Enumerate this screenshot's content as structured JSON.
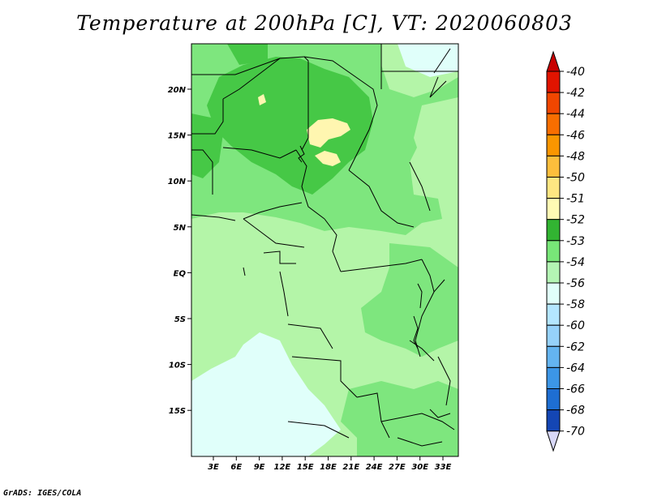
{
  "title": "Temperature at 200hPa [C], VT: 2020060803",
  "credit": "GrADS: IGES/COLA",
  "map": {
    "lon_ticks": [
      "3E",
      "6E",
      "9E",
      "12E",
      "15E",
      "18E",
      "21E",
      "24E",
      "27E",
      "30E",
      "33E"
    ],
    "lat_ticks": [
      "20N",
      "15N",
      "10N",
      "5N",
      "EQ",
      "5S",
      "10S",
      "15S"
    ],
    "colors": {
      "warm": "#fff6b0",
      "c52": "#46c846",
      "c53": "#7ee67e",
      "c54": "#b4f5a8",
      "c56": "#e0fffa",
      "border": "#000000"
    }
  },
  "colorbar": {
    "levels": [
      {
        "label": "-40",
        "color": "#e01400"
      },
      {
        "label": "-42",
        "color": "#f04600"
      },
      {
        "label": "-44",
        "color": "#f86e00"
      },
      {
        "label": "-46",
        "color": "#fa9600"
      },
      {
        "label": "-48",
        "color": "#fcbe3c"
      },
      {
        "label": "-50",
        "color": "#fee682"
      },
      {
        "label": "-51",
        "color": "#fffab4"
      },
      {
        "label": "-52",
        "color": "#32b432"
      },
      {
        "label": "-53",
        "color": "#78e678"
      },
      {
        "label": "-54",
        "color": "#b4f5b4"
      },
      {
        "label": "-56",
        "color": "#e1fffa"
      },
      {
        "label": "-58",
        "color": "#b4e6ff"
      },
      {
        "label": "-60",
        "color": "#96d2fa"
      },
      {
        "label": "-62",
        "color": "#64b4f0"
      },
      {
        "label": "-64",
        "color": "#3c96e6"
      },
      {
        "label": "-66",
        "color": "#1e6ed2"
      },
      {
        "label": "-68",
        "color": "#1446b4"
      },
      {
        "label": "-70",
        "color": "#0a1478"
      }
    ],
    "top_color": "#c80000",
    "bottom_color": "#d8d8f8"
  }
}
